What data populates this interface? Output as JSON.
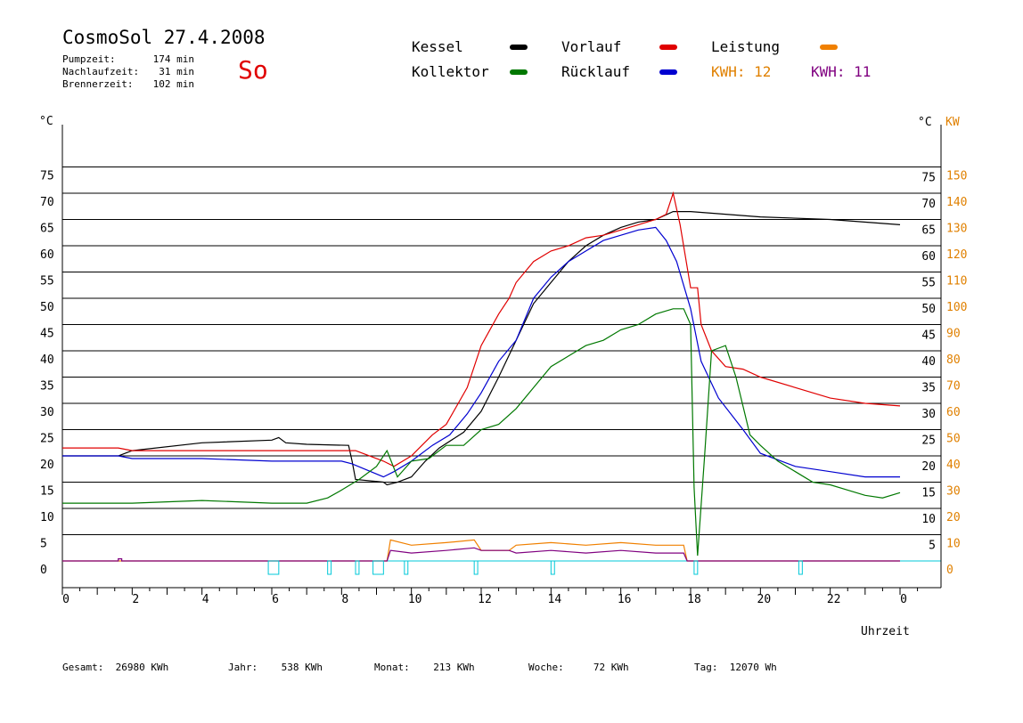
{
  "header": {
    "title": "CosmoSol 27.4.2008",
    "day": "So",
    "info": [
      {
        "label": "Pumpzeit:",
        "value": "174 min"
      },
      {
        "label": "Nachlaufzeit:",
        "value": "31 min"
      },
      {
        "label": "Brennerzeit:",
        "value": "102 min"
      }
    ]
  },
  "legend": {
    "kessel": {
      "label": "Kessel",
      "color": "#000000"
    },
    "vorlauf": {
      "label": "Vorlauf",
      "color": "#e00000"
    },
    "leistung": {
      "label": "Leistung",
      "color": "#f08000"
    },
    "kollektor": {
      "label": "Kollektor",
      "color": "#007800"
    },
    "ruecklauf": {
      "label": "Rücklauf",
      "color": "#0000d0"
    },
    "kwh1": {
      "label": "KWH:",
      "value": "12",
      "color": "#e08000"
    },
    "kwh2": {
      "label": "KWH:",
      "value": "11",
      "color": "#800080"
    }
  },
  "footer": {
    "gesamt": {
      "label": "Gesamt:",
      "value": "26980 KWh"
    },
    "jahr": {
      "label": "Jahr:",
      "value": "538 KWh"
    },
    "monat": {
      "label": "Monat:",
      "value": "213 KWh"
    },
    "woche": {
      "label": "Woche:",
      "value": "72 KWh"
    },
    "tag": {
      "label": "Tag:",
      "value": "12070 Wh"
    }
  },
  "chart_data": {
    "type": "line",
    "xlabel": "Uhrzeit",
    "ylabel": "°C",
    "y2label": "KW",
    "xlim": [
      0,
      24
    ],
    "ylim": [
      0,
      80
    ],
    "y2lim": [
      0,
      160
    ],
    "x_ticks": [
      "0",
      "2",
      "4",
      "6",
      "8",
      "10",
      "12",
      "14",
      "16",
      "18",
      "20",
      "22",
      "0"
    ],
    "y_ticks": [
      "0",
      "5",
      "10",
      "15",
      "20",
      "25",
      "30",
      "35",
      "40",
      "45",
      "50",
      "55",
      "60",
      "65",
      "70",
      "75"
    ],
    "y_ticks_right": [
      "",
      "5",
      "10",
      "15",
      "20",
      "25",
      "30",
      "35",
      "40",
      "45",
      "50",
      "55",
      "60",
      "65",
      "70",
      "75"
    ],
    "y2_ticks": [
      "0",
      "10",
      "20",
      "30",
      "40",
      "50",
      "60",
      "70",
      "80",
      "90",
      "100",
      "110",
      "120",
      "130",
      "140",
      "150"
    ],
    "grid": true,
    "colors": {
      "kessel": "#000000",
      "vorlauf": "#e00000",
      "ruecklauf": "#0000d0",
      "kollektor": "#007800",
      "leistung": "#f08000",
      "leistung2": "#800080",
      "pumpe": "#00c8d8"
    },
    "series": [
      {
        "name": "Kessel",
        "color": "#000000",
        "points": [
          [
            0,
            20
          ],
          [
            1.6,
            20
          ],
          [
            2,
            21
          ],
          [
            4,
            22.5
          ],
          [
            6,
            23
          ],
          [
            6.2,
            23.5
          ],
          [
            6.4,
            22.5
          ],
          [
            7,
            22.2
          ],
          [
            8.2,
            22
          ],
          [
            8.3,
            19
          ],
          [
            8.4,
            15.5
          ],
          [
            9.2,
            15
          ],
          [
            9.3,
            14.5
          ],
          [
            9.6,
            15
          ],
          [
            10,
            16
          ],
          [
            10.4,
            19
          ],
          [
            10.8,
            21.5
          ],
          [
            11.5,
            24.5
          ],
          [
            12,
            28.5
          ],
          [
            12.5,
            35
          ],
          [
            13,
            42
          ],
          [
            13.5,
            49
          ],
          [
            14,
            53
          ],
          [
            14.5,
            57
          ],
          [
            15,
            60
          ],
          [
            15.5,
            62
          ],
          [
            16,
            63.5
          ],
          [
            16.5,
            64.5
          ],
          [
            17,
            65
          ],
          [
            17.5,
            66.5
          ],
          [
            18,
            66.5
          ],
          [
            19,
            66
          ],
          [
            20,
            65.5
          ],
          [
            22,
            65
          ],
          [
            24,
            64
          ]
        ]
      },
      {
        "name": "Vorlauf",
        "color": "#e00000",
        "points": [
          [
            0,
            21.5
          ],
          [
            1.6,
            21.5
          ],
          [
            2,
            21
          ],
          [
            4,
            21
          ],
          [
            6,
            21
          ],
          [
            8,
            21
          ],
          [
            8.4,
            21
          ],
          [
            9.2,
            19
          ],
          [
            9.5,
            18
          ],
          [
            10,
            20
          ],
          [
            10.6,
            24
          ],
          [
            11,
            26
          ],
          [
            11.6,
            33
          ],
          [
            12,
            41
          ],
          [
            12.5,
            47
          ],
          [
            12.8,
            50
          ],
          [
            13,
            53
          ],
          [
            13.5,
            57
          ],
          [
            14,
            59
          ],
          [
            14.5,
            60
          ],
          [
            15,
            61.5
          ],
          [
            15.5,
            62
          ],
          [
            16,
            63
          ],
          [
            16.5,
            64
          ],
          [
            17,
            65
          ],
          [
            17.3,
            66
          ],
          [
            17.5,
            70
          ],
          [
            17.7,
            64
          ],
          [
            18,
            52
          ],
          [
            18.2,
            52
          ],
          [
            18.3,
            45
          ],
          [
            18.6,
            40
          ],
          [
            19,
            37
          ],
          [
            19.5,
            36.5
          ],
          [
            20,
            35
          ],
          [
            21,
            33
          ],
          [
            22,
            31
          ],
          [
            23,
            30
          ],
          [
            24,
            29.5
          ]
        ]
      },
      {
        "name": "Rücklauf",
        "color": "#0000d0",
        "points": [
          [
            0,
            20
          ],
          [
            1.6,
            20
          ],
          [
            2,
            19.5
          ],
          [
            4,
            19.5
          ],
          [
            6,
            19
          ],
          [
            8,
            19
          ],
          [
            8.3,
            18.5
          ],
          [
            9.2,
            16
          ],
          [
            9.5,
            17
          ],
          [
            10,
            19
          ],
          [
            10.6,
            22
          ],
          [
            11.1,
            24
          ],
          [
            11.6,
            28
          ],
          [
            12,
            32
          ],
          [
            12.5,
            38
          ],
          [
            13,
            42
          ],
          [
            13.5,
            50
          ],
          [
            14,
            54
          ],
          [
            14.5,
            57
          ],
          [
            15,
            59
          ],
          [
            15.5,
            61
          ],
          [
            16,
            62
          ],
          [
            16.5,
            63
          ],
          [
            17,
            63.5
          ],
          [
            17.3,
            61
          ],
          [
            17.6,
            57
          ],
          [
            18,
            48
          ],
          [
            18.3,
            38
          ],
          [
            18.8,
            31
          ],
          [
            19.5,
            25
          ],
          [
            20,
            20.5
          ],
          [
            21,
            18
          ],
          [
            22,
            17
          ],
          [
            23,
            16
          ],
          [
            24,
            16
          ]
        ]
      },
      {
        "name": "Kollektor",
        "color": "#007800",
        "points": [
          [
            0,
            11
          ],
          [
            2,
            11
          ],
          [
            4,
            11.5
          ],
          [
            6,
            11
          ],
          [
            7,
            11
          ],
          [
            7.6,
            12
          ],
          [
            8,
            13.5
          ],
          [
            8.5,
            15.5
          ],
          [
            9,
            18
          ],
          [
            9.3,
            21
          ],
          [
            9.6,
            16
          ],
          [
            10,
            19
          ],
          [
            10.5,
            19.5
          ],
          [
            11,
            22
          ],
          [
            11.5,
            22
          ],
          [
            12,
            25
          ],
          [
            12.5,
            26
          ],
          [
            13,
            29
          ],
          [
            13.5,
            33
          ],
          [
            14,
            37
          ],
          [
            14.5,
            39
          ],
          [
            15,
            41
          ],
          [
            15.5,
            42
          ],
          [
            16,
            44
          ],
          [
            16.5,
            45
          ],
          [
            17,
            47
          ],
          [
            17.5,
            48
          ],
          [
            17.8,
            48
          ],
          [
            18,
            45
          ],
          [
            18.1,
            14
          ],
          [
            18.2,
            1
          ],
          [
            18.4,
            20
          ],
          [
            18.6,
            40
          ],
          [
            19,
            41
          ],
          [
            19.3,
            35
          ],
          [
            19.7,
            24
          ],
          [
            20,
            22
          ],
          [
            20.5,
            19
          ],
          [
            21,
            17
          ],
          [
            21.5,
            15
          ],
          [
            22,
            14.5
          ],
          [
            22.5,
            13.5
          ],
          [
            23,
            12.5
          ],
          [
            23.5,
            12
          ],
          [
            24,
            13
          ]
        ]
      },
      {
        "name": "Leistung",
        "color": "#f08000",
        "points": [
          [
            0,
            0
          ],
          [
            9.3,
            0
          ],
          [
            9.4,
            4
          ],
          [
            10,
            3
          ],
          [
            11,
            3.5
          ],
          [
            11.8,
            4
          ],
          [
            12,
            2
          ],
          [
            12.8,
            2
          ],
          [
            13,
            3
          ],
          [
            14,
            3.5
          ],
          [
            15,
            3
          ],
          [
            16,
            3.5
          ],
          [
            17,
            3
          ],
          [
            17.8,
            3
          ],
          [
            17.9,
            0
          ],
          [
            24,
            0
          ]
        ]
      },
      {
        "name": "Leistung2",
        "color": "#800080",
        "points": [
          [
            0,
            0
          ],
          [
            1.6,
            0
          ],
          [
            1.6,
            0.4
          ],
          [
            1.7,
            0.4
          ],
          [
            1.7,
            0
          ],
          [
            9.3,
            0
          ],
          [
            9.4,
            2
          ],
          [
            10,
            1.5
          ],
          [
            11,
            2
          ],
          [
            11.8,
            2.5
          ],
          [
            12,
            2
          ],
          [
            12.8,
            2
          ],
          [
            13,
            1.5
          ],
          [
            14,
            2
          ],
          [
            15,
            1.5
          ],
          [
            16,
            2
          ],
          [
            17,
            1.5
          ],
          [
            17.8,
            1.5
          ],
          [
            17.9,
            0
          ],
          [
            24,
            0
          ]
        ]
      }
    ],
    "pump_intervals": [
      [
        5.9,
        6.2
      ],
      [
        7.6,
        7.7
      ],
      [
        8.4,
        8.5
      ],
      [
        8.9,
        9.2
      ],
      [
        9.8,
        9.9
      ],
      [
        11.8,
        11.9
      ],
      [
        14,
        14.1
      ],
      [
        18.1,
        18.2
      ],
      [
        21.1,
        21.2
      ]
    ]
  }
}
